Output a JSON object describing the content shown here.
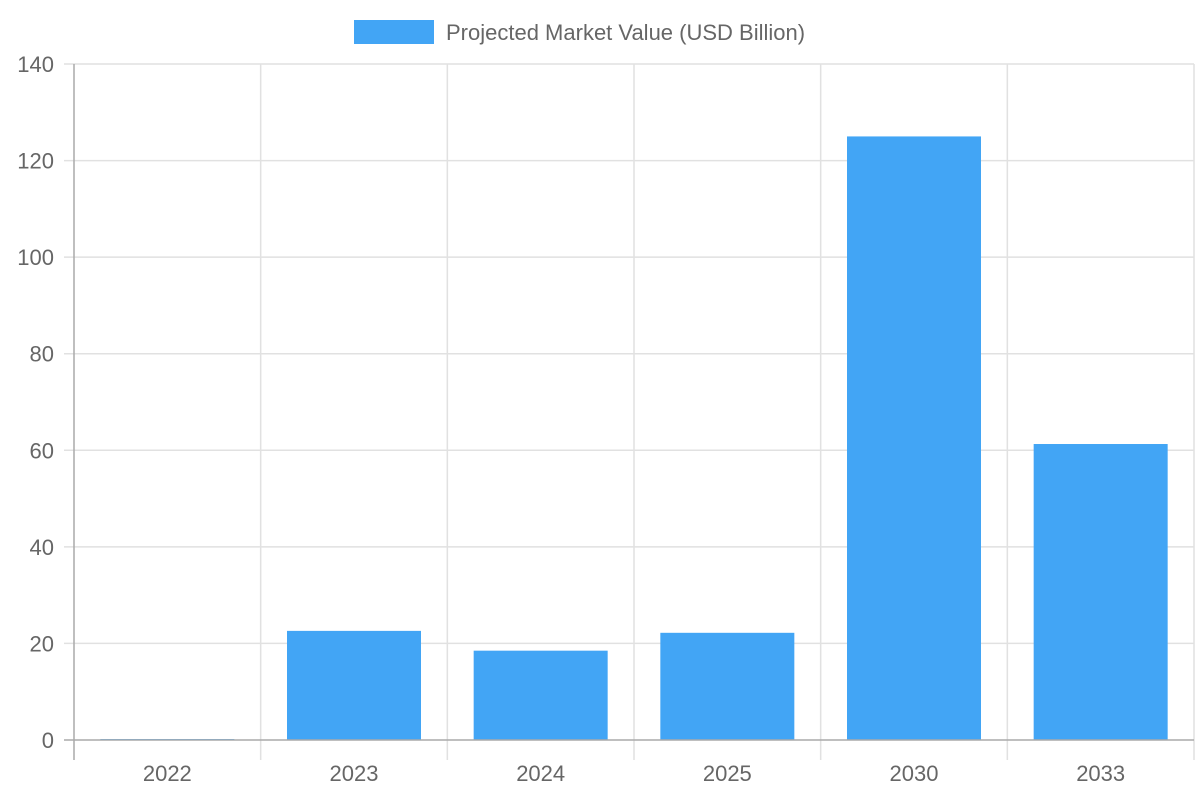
{
  "chart_data": {
    "type": "bar",
    "categories": [
      "2022",
      "2023",
      "2024",
      "2025",
      "2030",
      "2033"
    ],
    "series": [
      {
        "name": "Projected Market Value (USD Billion)",
        "values": [
          0.2,
          22.6,
          18.5,
          22.2,
          125,
          61.3
        ],
        "color": "#42a5f5"
      }
    ],
    "title": "",
    "xlabel": "",
    "ylabel": "",
    "ylim": [
      0,
      140
    ],
    "yticks": [
      0,
      20,
      40,
      60,
      80,
      100,
      120,
      140
    ],
    "grid": true,
    "legend": "top"
  }
}
